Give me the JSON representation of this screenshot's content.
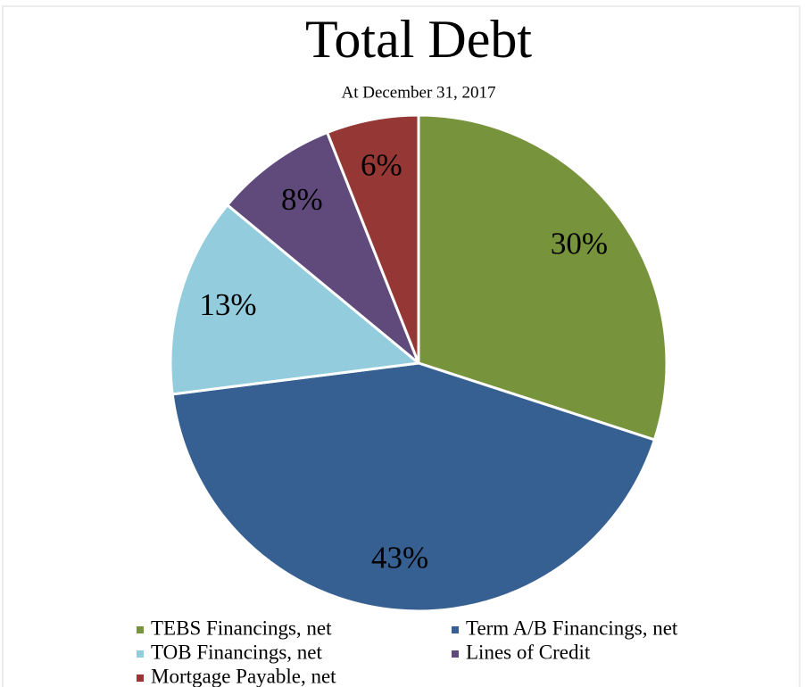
{
  "chart_data": {
    "type": "pie",
    "title": "Total Debt",
    "subtitle": "At December 31, 2017",
    "categories": [
      "TEBS Financings, net",
      "Term A/B Financings, net",
      "TOB Financings, net",
      "Lines of Credit",
      "Mortgage Payable, net"
    ],
    "values": [
      30,
      43,
      13,
      8,
      6
    ],
    "value_labels": [
      "30%",
      "43%",
      "13%",
      "8%",
      "6%"
    ],
    "colors": [
      "#77933c",
      "#376092",
      "#93cddd",
      "#604a7b",
      "#953735"
    ],
    "legend": "bottom"
  }
}
